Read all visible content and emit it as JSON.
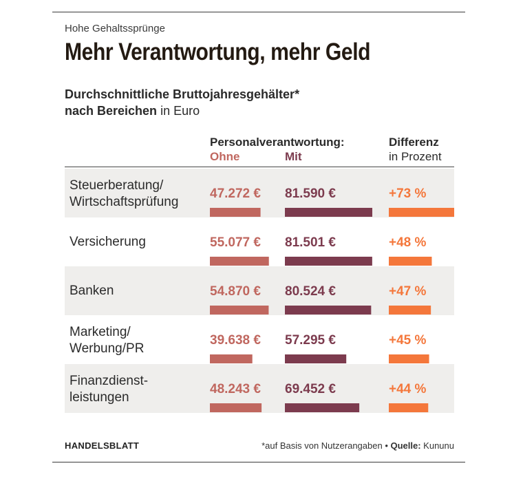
{
  "kicker": "Hohe Gehaltssprünge",
  "title": "Mehr Verantwortung, mehr Geld",
  "subtitle_bold_1": "Durchschnittliche Bruttojahresgehälter*",
  "subtitle_bold_2": "nach Bereichen",
  "subtitle_unit": " in Euro",
  "header": {
    "group": "Personalverantwortung:",
    "ohne": "Ohne",
    "mit": "Mit",
    "diff": "Differenz",
    "diff_unit": "in Prozent"
  },
  "colors": {
    "ohne": "#c0675f",
    "mit": "#7c3b4e",
    "diff": "#f4773b",
    "row_band": "#efeeec",
    "text_ohne": "#c0675f",
    "text_mit": "#7c3b4e",
    "text_diff": "#f4773b"
  },
  "chart_data": {
    "type": "table",
    "columns": [
      "Ohne",
      "Mit",
      "Differenz"
    ],
    "rows": [
      {
        "category": [
          "Steuerberatung/",
          "Wirtschaftsprüfung"
        ],
        "ohne": 47272,
        "mit": 81590,
        "diff": 73,
        "ohne_label": "47.272 €",
        "mit_label": "81.590 €",
        "diff_label": "+73 %"
      },
      {
        "category": [
          "Versicherung"
        ],
        "ohne": 55077,
        "mit": 81501,
        "diff": 48,
        "ohne_label": "55.077 €",
        "mit_label": "81.501 €",
        "diff_label": "+48 %"
      },
      {
        "category": [
          "Banken"
        ],
        "ohne": 54870,
        "mit": 80524,
        "diff": 47,
        "ohne_label": "54.870 €",
        "mit_label": "80.524 €",
        "diff_label": "+47 %"
      },
      {
        "category": [
          "Marketing/",
          "Werbung/PR"
        ],
        "ohne": 39638,
        "mit": 57295,
        "diff": 45,
        "ohne_label": "39.638 €",
        "mit_label": "57.295 €",
        "diff_label": "+45 %"
      },
      {
        "category": [
          "Finanzdienst-",
          "leistungen"
        ],
        "ohne": 48243,
        "mit": 69452,
        "diff": 44,
        "ohne_label": "48.243 €",
        "mit_label": "69.452 €",
        "diff_label": "+44 %"
      }
    ]
  },
  "footer": {
    "brand": "HANDELSBLATT",
    "note": "*auf Basis von Nutzerangaben",
    "bullet": " • ",
    "source_label": "Quelle:",
    "source": " Kununu"
  }
}
